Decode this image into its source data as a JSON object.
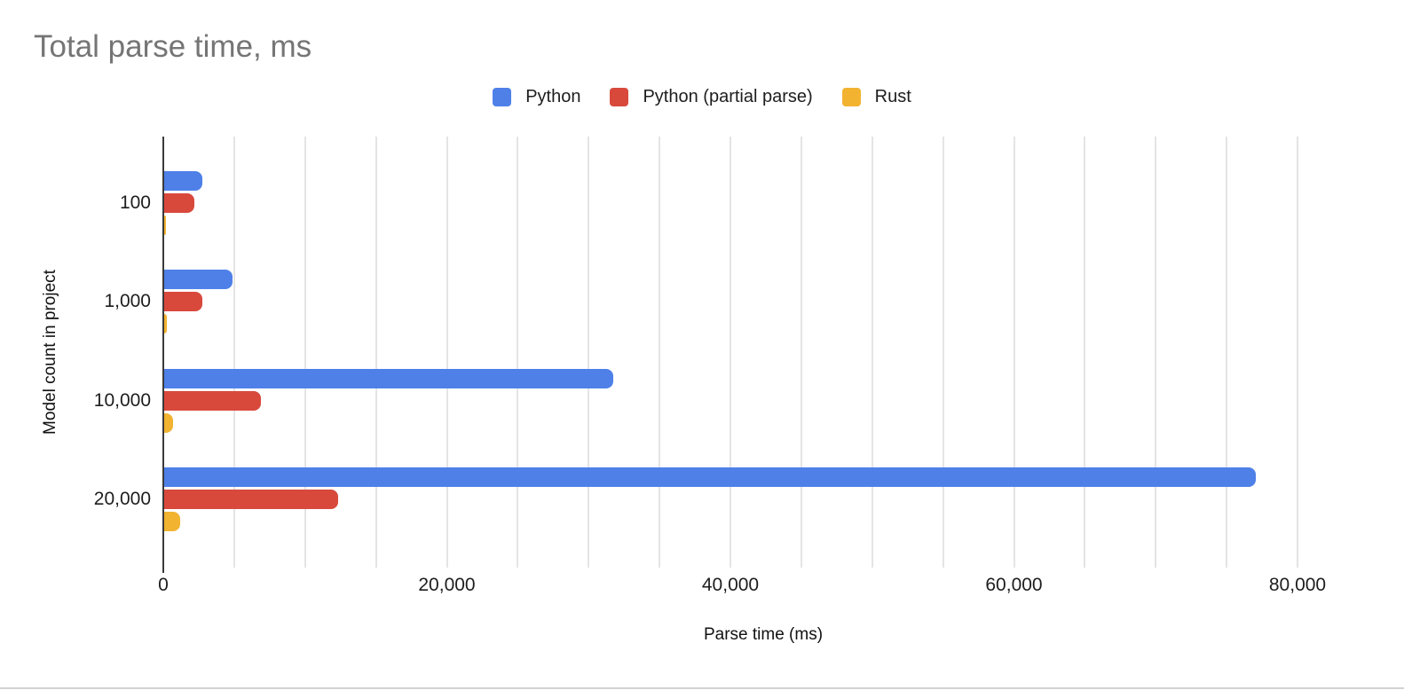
{
  "chart_data": {
    "type": "bar",
    "orientation": "horizontal",
    "title": "Total parse time, ms",
    "xlabel": "Parse time (ms)",
    "ylabel": "Model count in project",
    "categories": [
      "100",
      "1,000",
      "10,000",
      "20,000"
    ],
    "series": [
      {
        "name": "Python",
        "color": "#4E80E8",
        "values": [
          2700,
          4800,
          31700,
          77000
        ]
      },
      {
        "name": "Python (partial parse)",
        "color": "#D8493C",
        "values": [
          2100,
          2700,
          6800,
          12300
        ]
      },
      {
        "name": "Rust",
        "color": "#F2B331",
        "values": [
          130,
          160,
          650,
          1100
        ]
      }
    ],
    "xlim": [
      0,
      80000
    ],
    "x_major_ticks": [
      0,
      20000,
      40000,
      60000,
      80000
    ],
    "x_tick_labels": [
      "0",
      "20,000",
      "40,000",
      "60,000",
      "80,000"
    ],
    "gridline_step": 5000,
    "grid": true,
    "legend_position": "top"
  },
  "colors": {
    "title": "#757575",
    "axis_text": "#1d1d1d",
    "gridline": "#e4e4e4",
    "axis_line": "#3a3a3a"
  }
}
